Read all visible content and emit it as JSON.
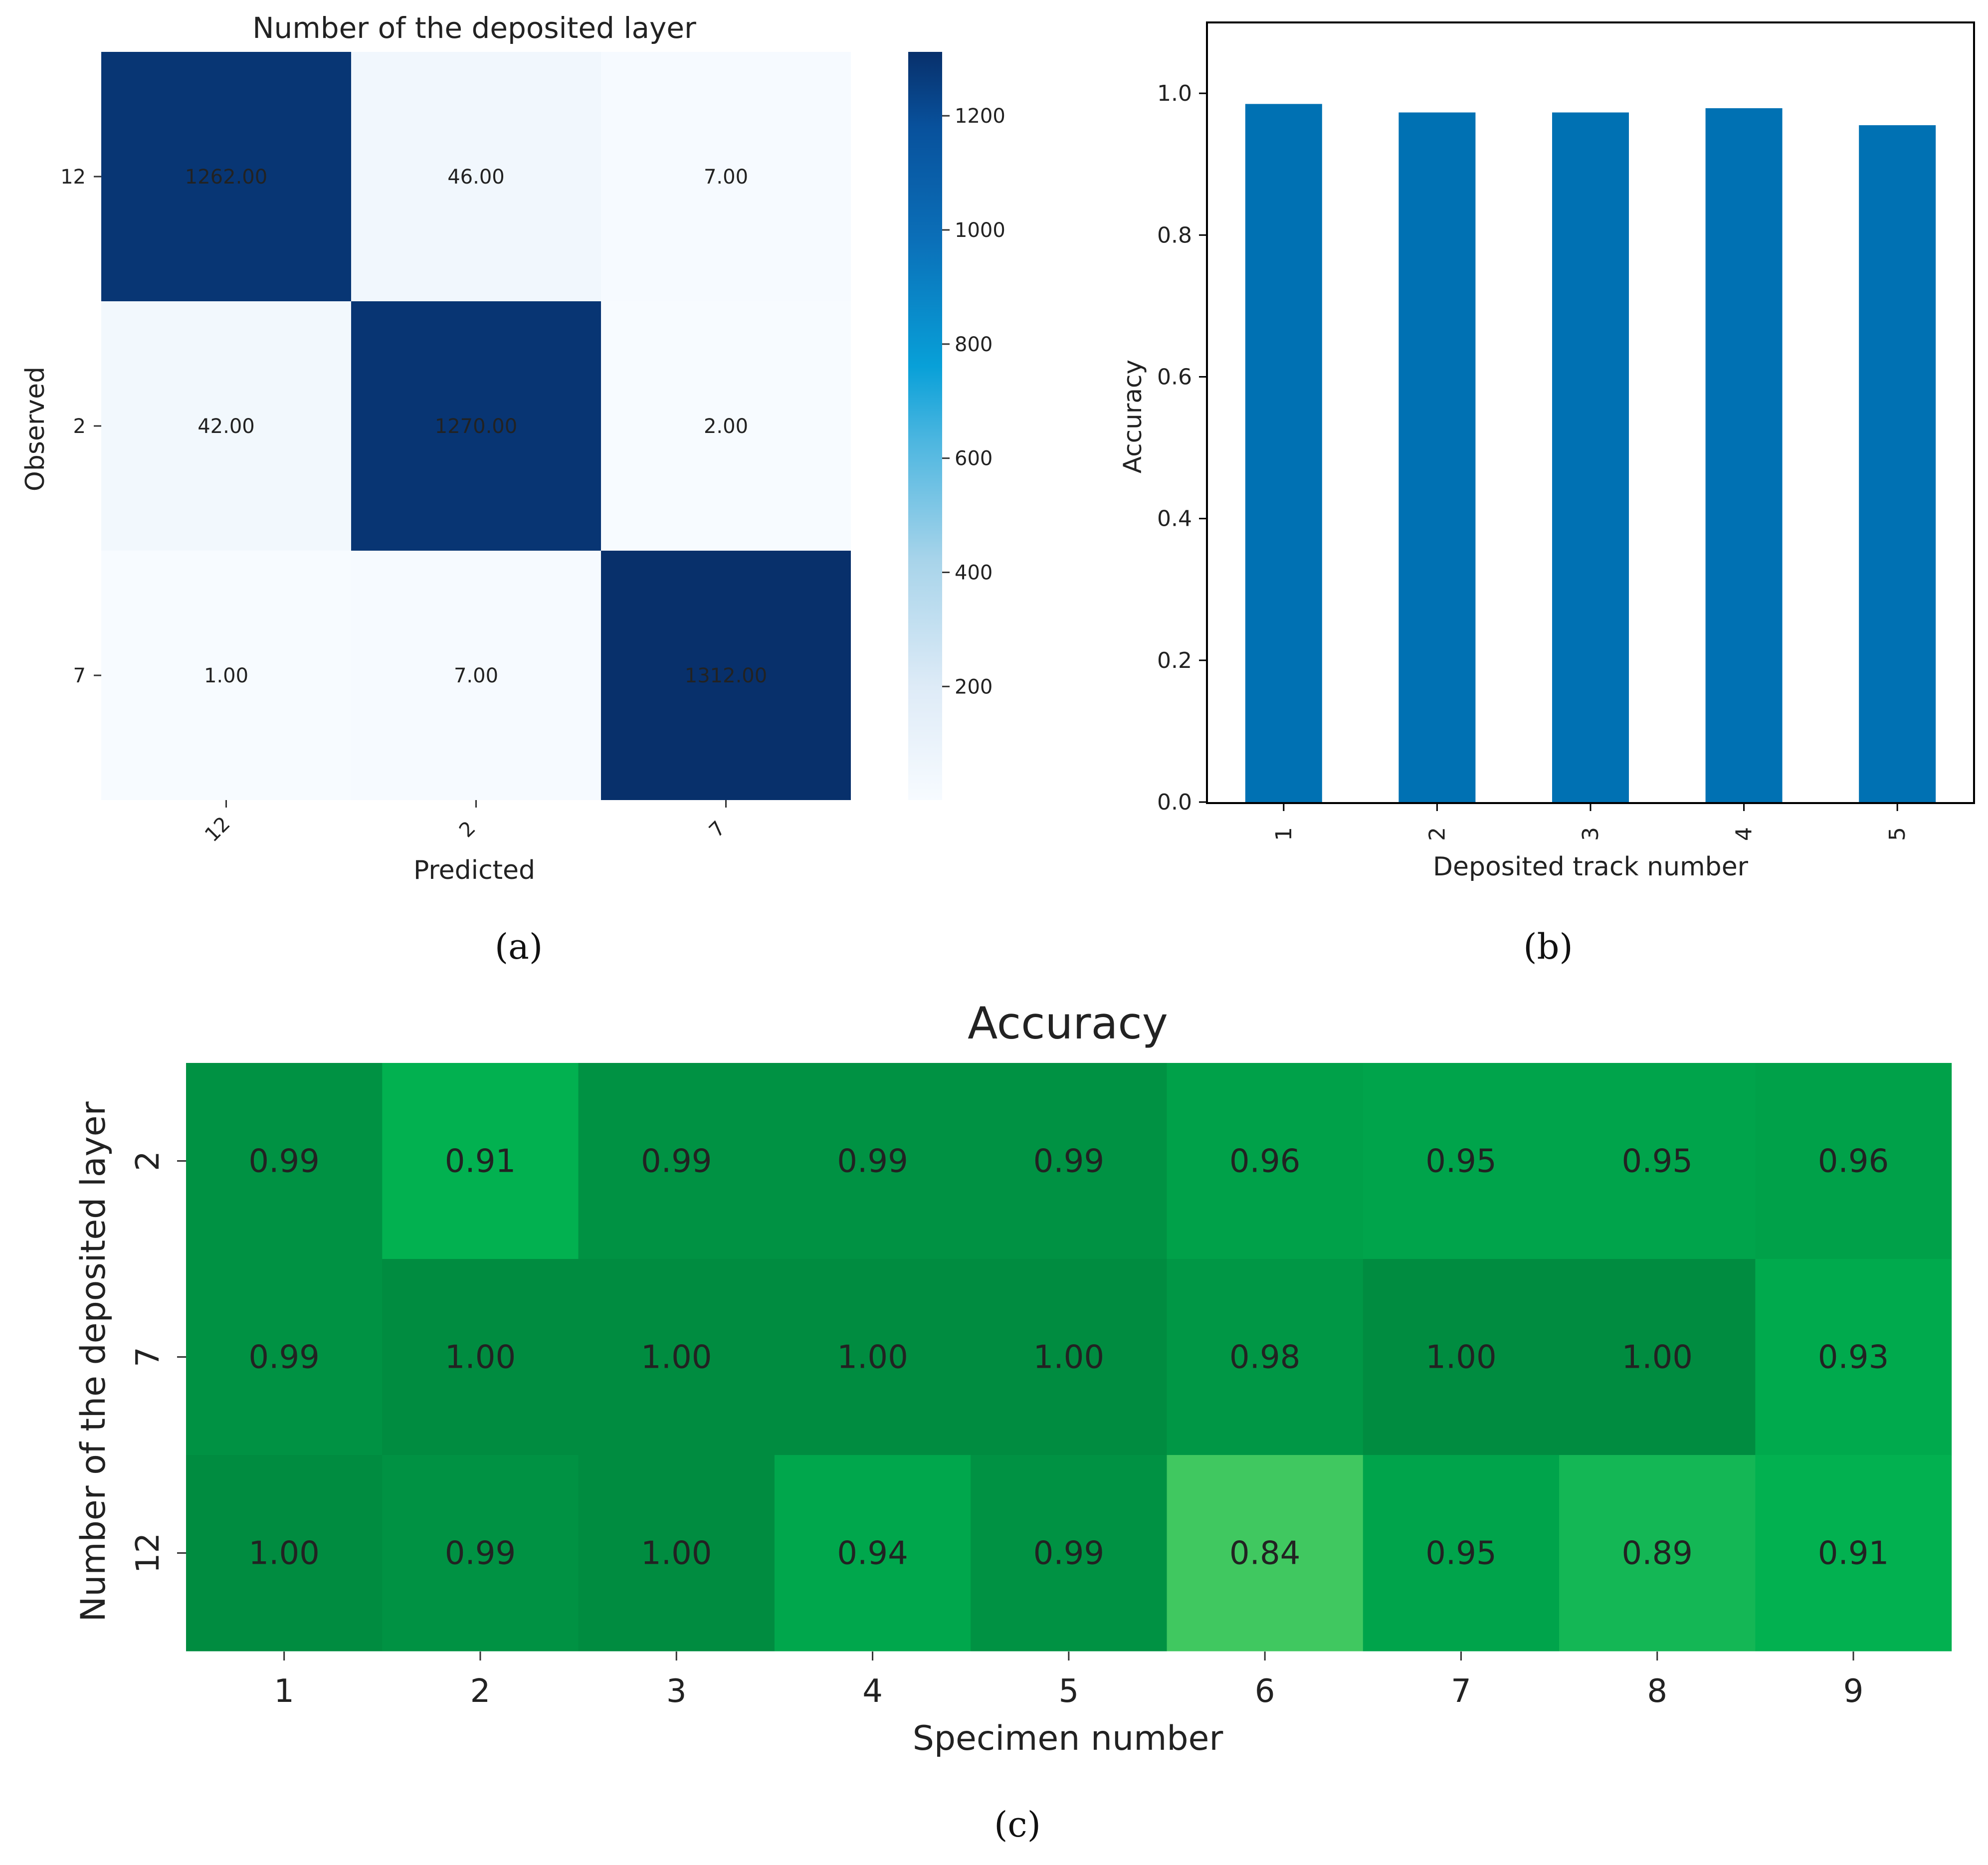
{
  "chart_data": [
    {
      "type": "heatmap",
      "panel_label": "(a)",
      "title": "Number of the deposited layer",
      "xlabel": "Predicted",
      "ylabel": "Observed",
      "x_categories": [
        "12",
        "2",
        "7"
      ],
      "y_categories": [
        "12",
        "2",
        "7"
      ],
      "values": [
        [
          1262,
          46,
          7
        ],
        [
          42,
          1270,
          2
        ],
        [
          1,
          7,
          1312
        ]
      ],
      "value_labels": [
        [
          "1262.00",
          "46.00",
          "7.00"
        ],
        [
          "42.00",
          "1270.00",
          "2.00"
        ],
        [
          "1.00",
          "7.00",
          "1312.00"
        ]
      ],
      "colormap": "Blues",
      "colorbar": {
        "min": 1,
        "max": 1312,
        "ticks": [
          200,
          400,
          600,
          800,
          1000,
          1200
        ],
        "tick_labels": [
          "200",
          "400",
          "600",
          "800",
          "1000",
          "1200"
        ]
      }
    },
    {
      "type": "bar",
      "panel_label": "(b)",
      "title": "",
      "xlabel": "Deposited track number",
      "ylabel": "Accuracy",
      "categories": [
        "1",
        "2",
        "3",
        "4",
        "5"
      ],
      "values": [
        0.985,
        0.973,
        0.973,
        0.979,
        0.955
      ],
      "ylim": [
        0.0,
        1.1
      ],
      "yticks": [
        0.0,
        0.2,
        0.4,
        0.6,
        0.8,
        1.0
      ],
      "ytick_labels": [
        "0.0",
        "0.2",
        "0.4",
        "0.6",
        "0.8",
        "1.0"
      ],
      "bar_color": "#0071b3"
    },
    {
      "type": "heatmap",
      "panel_label": "(c)",
      "title": "Accuracy",
      "xlabel": "Specimen number",
      "ylabel": "Number of the deposited layer",
      "x_categories": [
        "1",
        "2",
        "3",
        "4",
        "5",
        "6",
        "7",
        "8",
        "9"
      ],
      "y_categories": [
        "2",
        "7",
        "12"
      ],
      "values": [
        [
          0.99,
          0.91,
          0.99,
          0.99,
          0.99,
          0.96,
          0.95,
          0.95,
          0.96
        ],
        [
          0.99,
          1.0,
          1.0,
          1.0,
          1.0,
          0.98,
          1.0,
          1.0,
          0.93
        ],
        [
          1.0,
          0.99,
          1.0,
          0.94,
          0.99,
          0.84,
          0.95,
          0.89,
          0.91
        ]
      ],
      "value_labels": [
        [
          "0.99",
          "0.91",
          "0.99",
          "0.99",
          "0.99",
          "0.96",
          "0.95",
          "0.95",
          "0.96"
        ],
        [
          "0.99",
          "1.00",
          "1.00",
          "1.00",
          "1.00",
          "0.98",
          "1.00",
          "1.00",
          "0.93"
        ],
        [
          "1.00",
          "0.99",
          "1.00",
          "0.94",
          "0.99",
          "0.84",
          "0.95",
          "0.89",
          "0.91"
        ]
      ],
      "colormap": "Greens"
    }
  ]
}
